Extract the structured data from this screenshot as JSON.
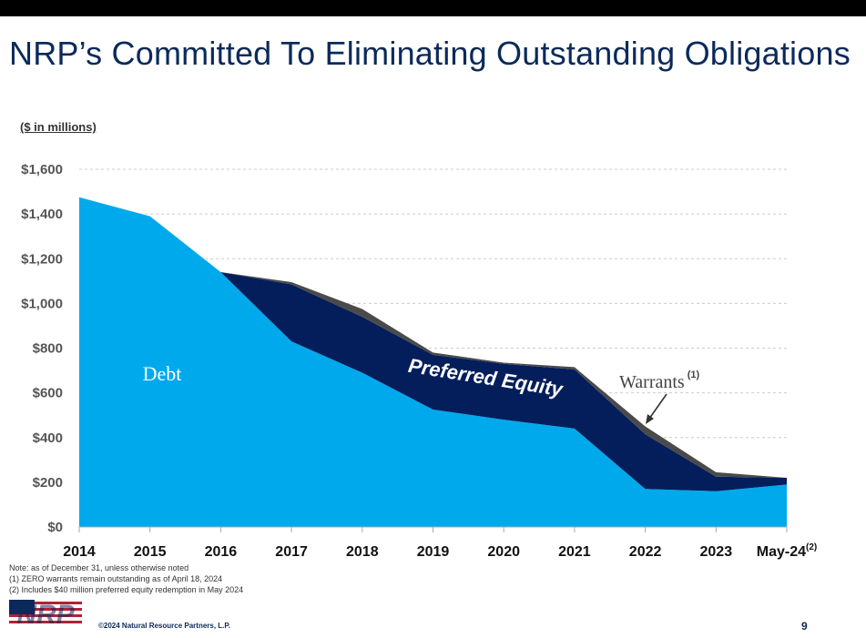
{
  "page": {
    "title": "NRP’s Committed To Eliminating Outstanding Obligations",
    "units_label": "($ in millions)",
    "notes": [
      "Note: as of December 31, unless otherwise noted",
      "(1) ZERO warrants remain outstanding as of April 18, 2024",
      "(2) Includes $40 million preferred equity redemption in May 2024"
    ],
    "copyright": "©2024 Natural Resource Partners, L.P.",
    "page_number": "9",
    "logo_text": "NRP"
  },
  "chart_data": {
    "type": "area",
    "stacked": true,
    "categories": [
      "2014",
      "2015",
      "2016",
      "2017",
      "2018",
      "2019",
      "2020",
      "2021",
      "2022",
      "2023",
      "May-24"
    ],
    "category_superscripts": {
      "May-24": "(2)"
    },
    "ylim": [
      0,
      1600
    ],
    "yticks": [
      0,
      200,
      400,
      600,
      800,
      1000,
      1200,
      1400,
      1600
    ],
    "ytick_labels": [
      "$0",
      "$200",
      "$400",
      "$600",
      "$800",
      "$1,000",
      "$1,200",
      "$1,400",
      "$1,600"
    ],
    "grid": true,
    "series": [
      {
        "name": "Debt",
        "color": "#00a9ec",
        "values": [
          1475,
          1390,
          1140,
          830,
          690,
          525,
          480,
          440,
          170,
          160,
          190
        ]
      },
      {
        "name": "Preferred Equity",
        "color": "#041e5c",
        "values": [
          0,
          0,
          0,
          255,
          250,
          245,
          250,
          265,
          245,
          65,
          30
        ]
      },
      {
        "name": "Warrants",
        "superscript": "(1)",
        "color": "#4a4a4a",
        "values": [
          0,
          0,
          0,
          10,
          35,
          10,
          5,
          10,
          35,
          20,
          0
        ]
      }
    ]
  }
}
